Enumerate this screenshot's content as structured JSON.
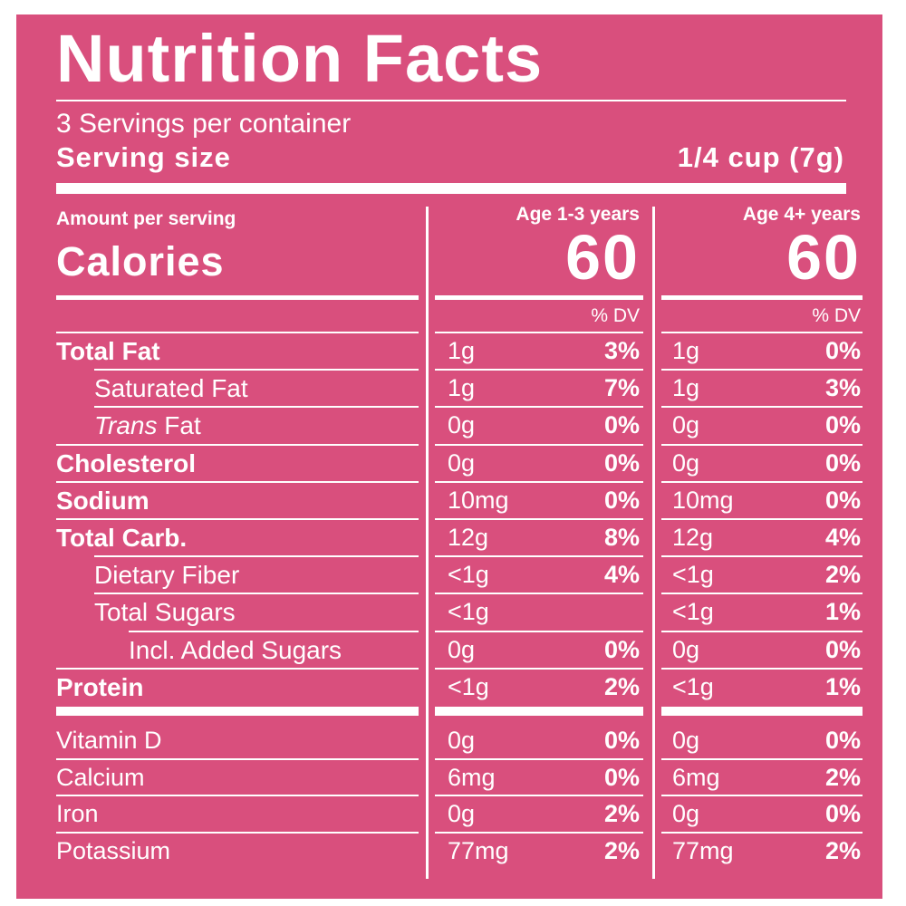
{
  "title": "Nutrition Facts",
  "servings_per_container": "3 Servings per container",
  "serving_size_label": "Serving size",
  "serving_size_value": "1/4 cup (7g)",
  "amount_per_serving": "Amount per serving",
  "calories_label": "Calories",
  "columns": [
    {
      "header": "Age 1-3 years",
      "calories": "60",
      "dv_header": "% DV"
    },
    {
      "header": "Age 4+ years",
      "calories": "60",
      "dv_header": "% DV"
    }
  ],
  "nutrients": [
    {
      "label": "Total Fat",
      "c1_amt": "1g",
      "c1_dv": "3%",
      "c2_amt": "1g",
      "c2_dv": "0%"
    },
    {
      "label": "Saturated Fat",
      "c1_amt": "1g",
      "c1_dv": "7%",
      "c2_amt": "1g",
      "c2_dv": "3%"
    },
    {
      "label_italic": "Trans",
      "label": " Fat",
      "c1_amt": "0g",
      "c1_dv": "0%",
      "c2_amt": "0g",
      "c2_dv": "0%"
    },
    {
      "label": "Cholesterol",
      "c1_amt": "0g",
      "c1_dv": "0%",
      "c2_amt": "0g",
      "c2_dv": "0%"
    },
    {
      "label": "Sodium",
      "c1_amt": "10mg",
      "c1_dv": "0%",
      "c2_amt": "10mg",
      "c2_dv": "0%"
    },
    {
      "label": "Total Carb.",
      "c1_amt": "12g",
      "c1_dv": "8%",
      "c2_amt": "12g",
      "c2_dv": "4%"
    },
    {
      "label": "Dietary Fiber",
      "c1_amt": "<1g",
      "c1_dv": "4%",
      "c2_amt": "<1g",
      "c2_dv": "2%"
    },
    {
      "label": "Total Sugars",
      "c1_amt": "<1g",
      "c1_dv": "",
      "c2_amt": "<1g",
      "c2_dv": "1%"
    },
    {
      "label": "Incl. Added Sugars",
      "c1_amt": "0g",
      "c1_dv": "0%",
      "c2_amt": "0g",
      "c2_dv": "0%"
    },
    {
      "label": "Protein",
      "c1_amt": "<1g",
      "c1_dv": "2%",
      "c2_amt": "<1g",
      "c2_dv": "1%"
    }
  ],
  "vitamins": [
    {
      "label": "Vitamin D",
      "c1_amt": "0g",
      "c1_dv": "0%",
      "c2_amt": "0g",
      "c2_dv": "0%"
    },
    {
      "label": "Calcium",
      "c1_amt": "6mg",
      "c1_dv": "0%",
      "c2_amt": "6mg",
      "c2_dv": "2%"
    },
    {
      "label": "Iron",
      "c1_amt": "0g",
      "c1_dv": "2%",
      "c2_amt": "0g",
      "c2_dv": "0%"
    },
    {
      "label": "Potassium",
      "c1_amt": "77mg",
      "c1_dv": "2%",
      "c2_amt": "77mg",
      "c2_dv": "2%"
    }
  ],
  "colors": {
    "panel_background": "#d94f7d",
    "text": "#ffffff"
  }
}
